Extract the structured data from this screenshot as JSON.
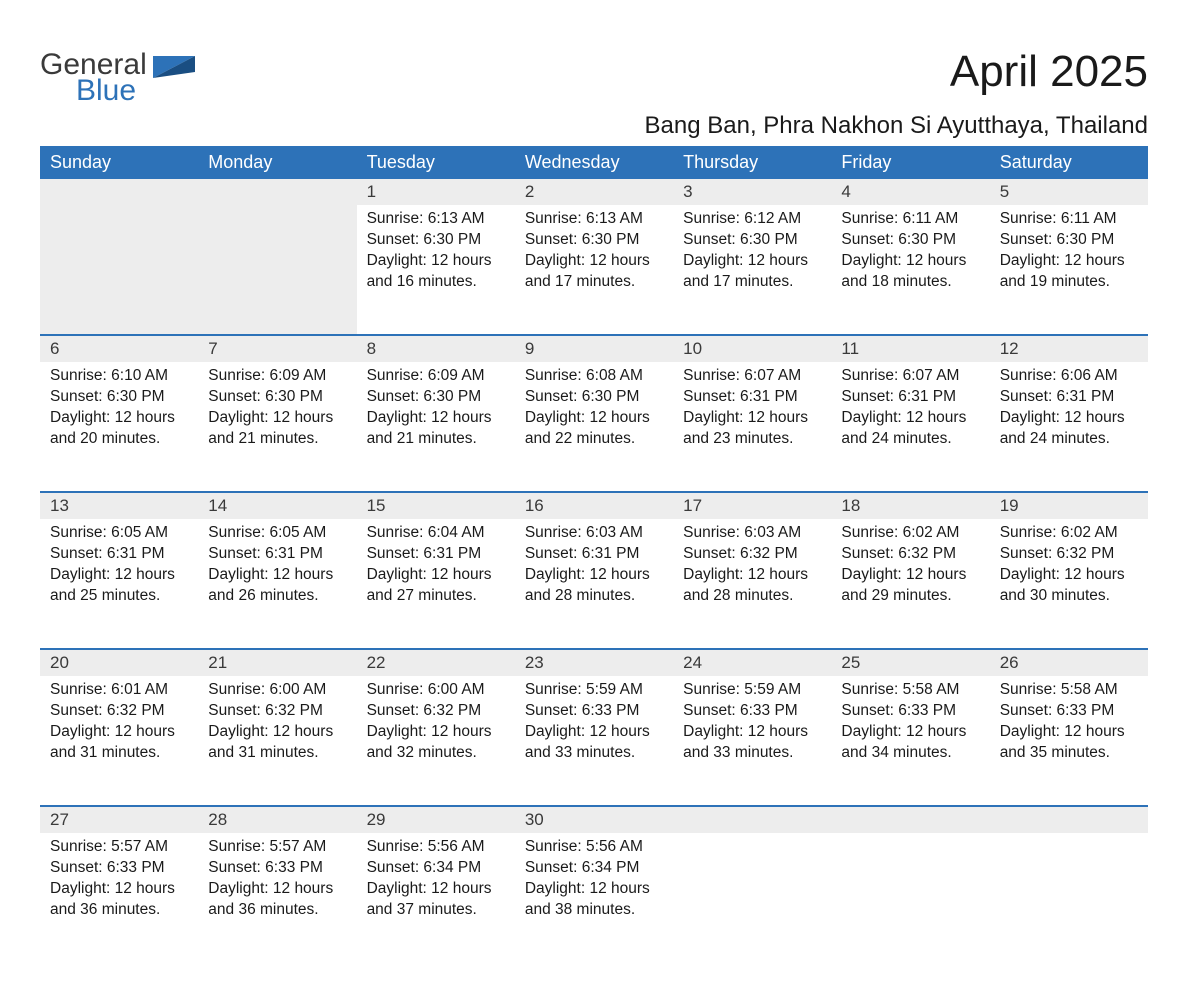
{
  "logo": {
    "word1": "General",
    "word2": "Blue"
  },
  "title": "April 2025",
  "location": "Bang Ban, Phra Nakhon Si Ayutthaya, Thailand",
  "header_bg": "#2d72b8",
  "header_fg": "#ffffff",
  "daynum_bg": "#ededed",
  "row_border": "#2d72b8",
  "days": [
    "Sunday",
    "Monday",
    "Tuesday",
    "Wednesday",
    "Thursday",
    "Friday",
    "Saturday"
  ],
  "weeks": [
    [
      null,
      null,
      {
        "n": "1",
        "sunrise": "6:13 AM",
        "sunset": "6:30 PM",
        "daylight": "12 hours and 16 minutes."
      },
      {
        "n": "2",
        "sunrise": "6:13 AM",
        "sunset": "6:30 PM",
        "daylight": "12 hours and 17 minutes."
      },
      {
        "n": "3",
        "sunrise": "6:12 AM",
        "sunset": "6:30 PM",
        "daylight": "12 hours and 17 minutes."
      },
      {
        "n": "4",
        "sunrise": "6:11 AM",
        "sunset": "6:30 PM",
        "daylight": "12 hours and 18 minutes."
      },
      {
        "n": "5",
        "sunrise": "6:11 AM",
        "sunset": "6:30 PM",
        "daylight": "12 hours and 19 minutes."
      }
    ],
    [
      {
        "n": "6",
        "sunrise": "6:10 AM",
        "sunset": "6:30 PM",
        "daylight": "12 hours and 20 minutes."
      },
      {
        "n": "7",
        "sunrise": "6:09 AM",
        "sunset": "6:30 PM",
        "daylight": "12 hours and 21 minutes."
      },
      {
        "n": "8",
        "sunrise": "6:09 AM",
        "sunset": "6:30 PM",
        "daylight": "12 hours and 21 minutes."
      },
      {
        "n": "9",
        "sunrise": "6:08 AM",
        "sunset": "6:30 PM",
        "daylight": "12 hours and 22 minutes."
      },
      {
        "n": "10",
        "sunrise": "6:07 AM",
        "sunset": "6:31 PM",
        "daylight": "12 hours and 23 minutes."
      },
      {
        "n": "11",
        "sunrise": "6:07 AM",
        "sunset": "6:31 PM",
        "daylight": "12 hours and 24 minutes."
      },
      {
        "n": "12",
        "sunrise": "6:06 AM",
        "sunset": "6:31 PM",
        "daylight": "12 hours and 24 minutes."
      }
    ],
    [
      {
        "n": "13",
        "sunrise": "6:05 AM",
        "sunset": "6:31 PM",
        "daylight": "12 hours and 25 minutes."
      },
      {
        "n": "14",
        "sunrise": "6:05 AM",
        "sunset": "6:31 PM",
        "daylight": "12 hours and 26 minutes."
      },
      {
        "n": "15",
        "sunrise": "6:04 AM",
        "sunset": "6:31 PM",
        "daylight": "12 hours and 27 minutes."
      },
      {
        "n": "16",
        "sunrise": "6:03 AM",
        "sunset": "6:31 PM",
        "daylight": "12 hours and 28 minutes."
      },
      {
        "n": "17",
        "sunrise": "6:03 AM",
        "sunset": "6:32 PM",
        "daylight": "12 hours and 28 minutes."
      },
      {
        "n": "18",
        "sunrise": "6:02 AM",
        "sunset": "6:32 PM",
        "daylight": "12 hours and 29 minutes."
      },
      {
        "n": "19",
        "sunrise": "6:02 AM",
        "sunset": "6:32 PM",
        "daylight": "12 hours and 30 minutes."
      }
    ],
    [
      {
        "n": "20",
        "sunrise": "6:01 AM",
        "sunset": "6:32 PM",
        "daylight": "12 hours and 31 minutes."
      },
      {
        "n": "21",
        "sunrise": "6:00 AM",
        "sunset": "6:32 PM",
        "daylight": "12 hours and 31 minutes."
      },
      {
        "n": "22",
        "sunrise": "6:00 AM",
        "sunset": "6:32 PM",
        "daylight": "12 hours and 32 minutes."
      },
      {
        "n": "23",
        "sunrise": "5:59 AM",
        "sunset": "6:33 PM",
        "daylight": "12 hours and 33 minutes."
      },
      {
        "n": "24",
        "sunrise": "5:59 AM",
        "sunset": "6:33 PM",
        "daylight": "12 hours and 33 minutes."
      },
      {
        "n": "25",
        "sunrise": "5:58 AM",
        "sunset": "6:33 PM",
        "daylight": "12 hours and 34 minutes."
      },
      {
        "n": "26",
        "sunrise": "5:58 AM",
        "sunset": "6:33 PM",
        "daylight": "12 hours and 35 minutes."
      }
    ],
    [
      {
        "n": "27",
        "sunrise": "5:57 AM",
        "sunset": "6:33 PM",
        "daylight": "12 hours and 36 minutes."
      },
      {
        "n": "28",
        "sunrise": "5:57 AM",
        "sunset": "6:33 PM",
        "daylight": "12 hours and 36 minutes."
      },
      {
        "n": "29",
        "sunrise": "5:56 AM",
        "sunset": "6:34 PM",
        "daylight": "12 hours and 37 minutes."
      },
      {
        "n": "30",
        "sunrise": "5:56 AM",
        "sunset": "6:34 PM",
        "daylight": "12 hours and 38 minutes."
      },
      null,
      null,
      null
    ]
  ],
  "labels": {
    "sunrise": "Sunrise: ",
    "sunset": "Sunset: ",
    "daylight": "Daylight: "
  }
}
